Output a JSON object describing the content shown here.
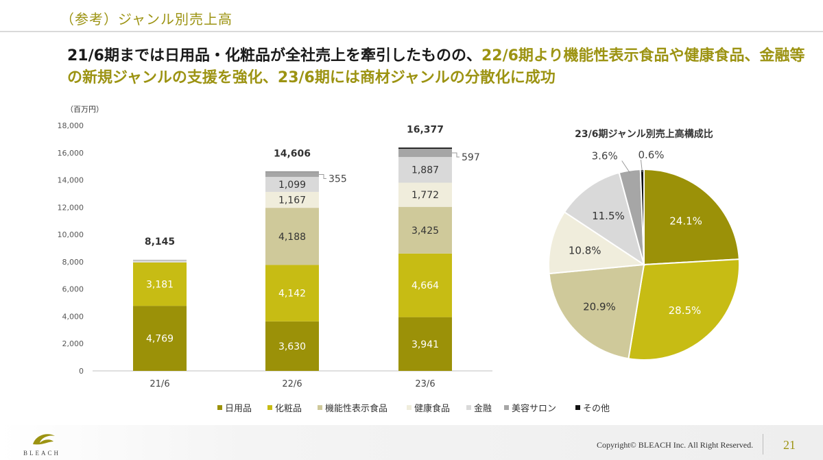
{
  "header": {
    "title": "（参考）ジャンル別売上高"
  },
  "headline": {
    "part1": "21/6期までは日用品・化粧品が全社売上を牽引したものの、",
    "part2": "22/6期より機能性表示食品や健康食品、金融等の新規ジャンルの支援を強化、23/6期には商材ジャンルの分散化に成功"
  },
  "colors": {
    "日用品": "#9b9108",
    "化粧品": "#c7bc14",
    "機能性表示食品": "#cfc99a",
    "健康食品": "#f0eddc",
    "金融": "#d9d9d9",
    "美容サロン": "#a6a6a6",
    "その他": "#111111"
  },
  "chart_data": [
    {
      "type": "bar",
      "stacked": true,
      "unit_label": "（百万円）",
      "categories": [
        "21/6",
        "22/6",
        "23/6"
      ],
      "ylim": [
        0,
        18000
      ],
      "yticks": [
        "0",
        "2,000",
        "4,000",
        "6,000",
        "8,000",
        "10,000",
        "12,000",
        "14,000",
        "16,000",
        "18,000"
      ],
      "totals": [
        8145,
        14606,
        16377
      ],
      "total_labels": [
        "8,145",
        "14,606",
        "16,377"
      ],
      "series": [
        {
          "name": "日用品",
          "values": [
            4769,
            3630,
            3941
          ],
          "labels": [
            "4,769",
            "3,630",
            "3,941"
          ]
        },
        {
          "name": "化粧品",
          "values": [
            3181,
            4142,
            4664
          ],
          "labels": [
            "3,181",
            "4,142",
            "4,664"
          ]
        },
        {
          "name": "機能性表示食品",
          "values": [
            0,
            4188,
            3425
          ],
          "labels": [
            "",
            "4,188",
            "3,425"
          ]
        },
        {
          "name": "健康食品",
          "values": [
            0,
            1167,
            1772
          ],
          "labels": [
            "",
            "1,167",
            "1,772"
          ]
        },
        {
          "name": "金融",
          "values": [
            150,
            1099,
            1887
          ],
          "labels": [
            "",
            "1,099",
            "1,887"
          ]
        },
        {
          "name": "美容サロン",
          "values": [
            45,
            355,
            597
          ],
          "labels": [
            "",
            "355",
            "597"
          ]
        },
        {
          "name": "その他",
          "values": [
            0,
            25,
            91
          ],
          "labels": [
            "",
            "",
            ""
          ]
        }
      ],
      "legend": [
        "日用品",
        "化粧品",
        "機能性表示食品",
        "健康食品",
        "金融",
        "美容サロン",
        "その他"
      ],
      "legend_position": "bottom"
    },
    {
      "type": "pie",
      "title": "23/6期ジャンル別売上高構成比",
      "slices": [
        {
          "name": "日用品",
          "value": 24.1,
          "label": "24.1%"
        },
        {
          "name": "化粧品",
          "value": 28.5,
          "label": "28.5%"
        },
        {
          "name": "機能性表示食品",
          "value": 20.9,
          "label": "20.9%"
        },
        {
          "name": "健康食品",
          "value": 10.8,
          "label": "10.8%"
        },
        {
          "name": "金融",
          "value": 11.5,
          "label": "11.5%"
        },
        {
          "name": "美容サロン",
          "value": 3.6,
          "label": "3.6%"
        },
        {
          "name": "その他",
          "value": 0.6,
          "label": "0.6%"
        }
      ]
    }
  ],
  "footer": {
    "copyright": "Copyright© BLEACH Inc. All Right Reserved.",
    "page": "21",
    "logo_text": "BLEACH"
  }
}
